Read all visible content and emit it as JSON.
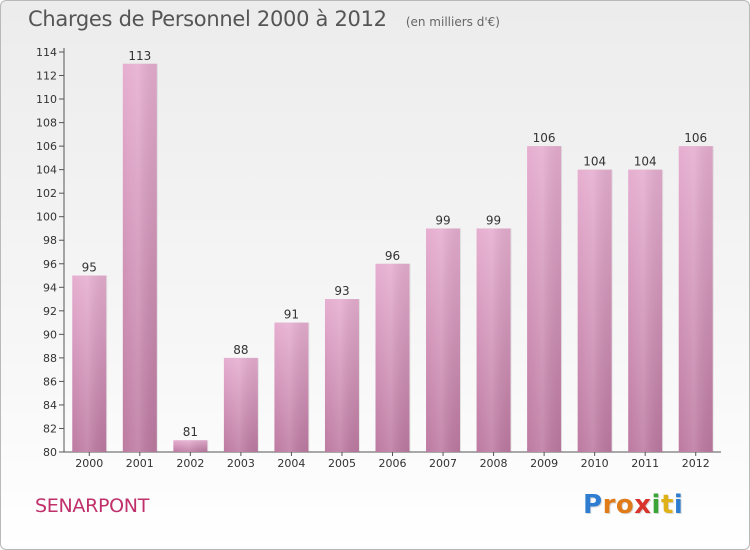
{
  "header": {
    "title": "Charges de Personnel 2000 à 2012",
    "unit": "(en milliers d'€)"
  },
  "footer": {
    "town": "SENARPONT",
    "logo": [
      "P",
      "r",
      "o",
      "x",
      "i",
      "t",
      "i"
    ],
    "logo_colors": [
      "#2e7dd1",
      "#e07b1a",
      "#e07b1a",
      "#d9342b",
      "#3aa535",
      "#e0b21a",
      "#2e7dd1"
    ]
  },
  "colors": {
    "bar": "#d793bd",
    "bar_light": "#e6aed0",
    "bar_dark": "#c0789f",
    "town": "#c0306b"
  },
  "chart_data": {
    "type": "bar",
    "title": "Charges de Personnel 2000 à 2012",
    "categories": [
      "2000",
      "2001",
      "2002",
      "2003",
      "2004",
      "2005",
      "2006",
      "2007",
      "2008",
      "2009",
      "2010",
      "2011",
      "2012"
    ],
    "values": [
      95,
      113,
      81,
      88,
      91,
      93,
      96,
      99,
      99,
      106,
      104,
      104,
      106
    ],
    "ylim": [
      80,
      114
    ],
    "yticks": [
      80,
      82,
      84,
      86,
      88,
      90,
      92,
      94,
      96,
      98,
      100,
      102,
      104,
      106,
      108,
      110,
      112,
      114
    ],
    "grid": false
  }
}
